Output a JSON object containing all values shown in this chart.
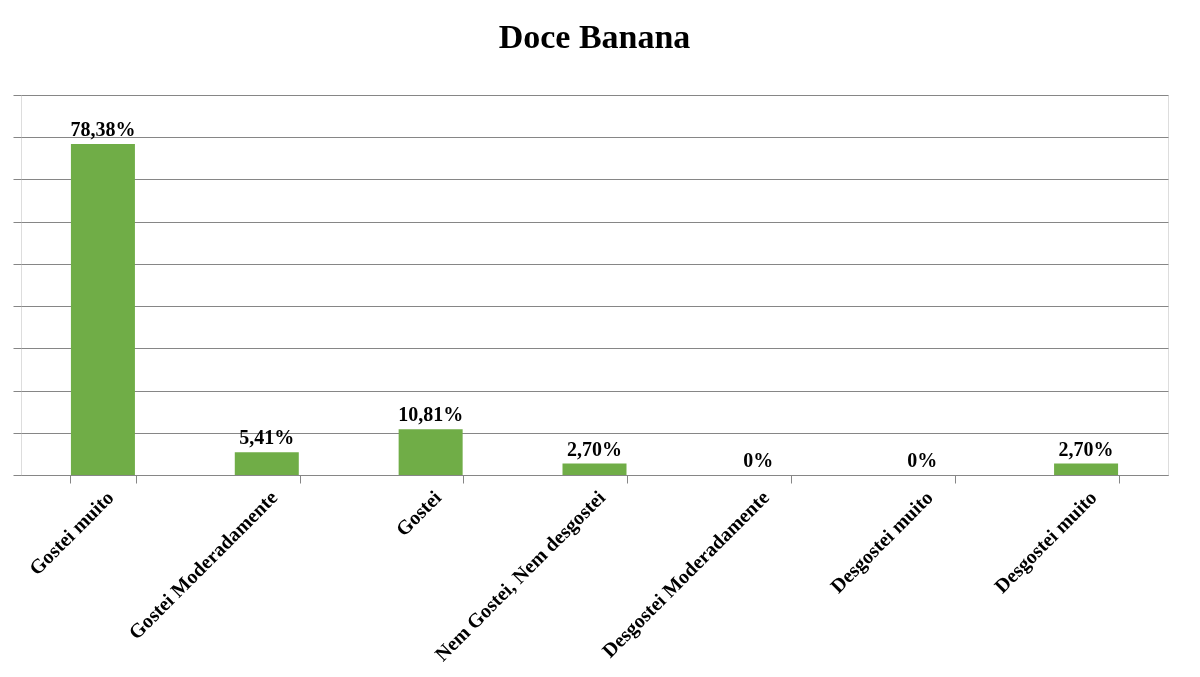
{
  "chart_data": {
    "type": "bar",
    "title": "Doce Banana",
    "categories": [
      "Gostei muito",
      "Gostei Moderadamente",
      "Gostei",
      "Nem Gostei, Nem desgostei",
      "Desgostei Moderadamente",
      "Desgostei muito",
      "Desgostei muito"
    ],
    "values": [
      78.38,
      5.41,
      10.81,
      2.7,
      0,
      0,
      2.7
    ],
    "value_labels": [
      "78,38%",
      "5,41%",
      "10,81%",
      "2,70%",
      "0%",
      "0%",
      "2,70%"
    ],
    "color": "#70ad47",
    "ylim": [
      0,
      90
    ],
    "tick_labels": "x",
    "grid": "y"
  }
}
